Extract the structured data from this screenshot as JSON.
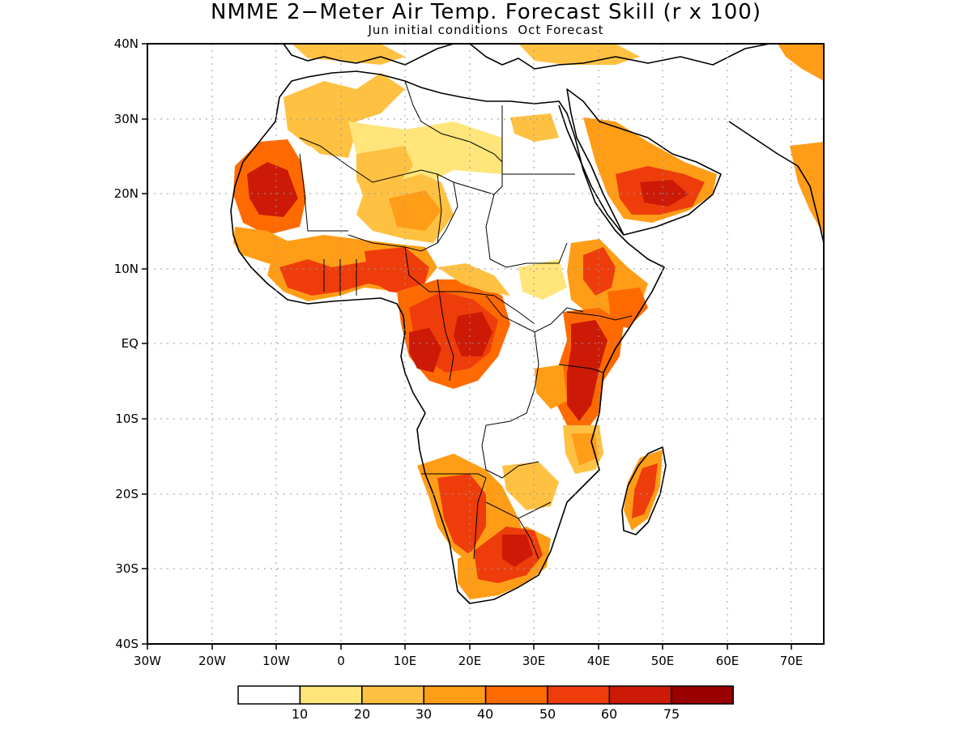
{
  "title": "NMME 2−Meter Air Temp. Forecast Skill (r x 100)",
  "subtitle": "Jun initial conditions  Oct Forecast",
  "map": {
    "lon_range": [
      -30,
      75
    ],
    "lat_range": [
      -40,
      40
    ],
    "grid": "dotted",
    "lon_ticks": [
      "30W",
      "20W",
      "10W",
      "0",
      "10E",
      "20E",
      "30E",
      "40E",
      "50E",
      "60E",
      "70E"
    ],
    "lat_ticks": [
      "40N",
      "30N",
      "20N",
      "10N",
      "EQ",
      "10S",
      "20S",
      "30S",
      "40S"
    ]
  },
  "colorbar": {
    "colors": [
      "#ffffff",
      "#ffe57a",
      "#ffc142",
      "#ff9d17",
      "#ff6a00",
      "#ee3d0b",
      "#cc1a06",
      "#990000"
    ],
    "labels": [
      "10",
      "20",
      "30",
      "40",
      "50",
      "60",
      "75"
    ]
  },
  "colors": {
    "c10": "#ffe57a",
    "c20": "#ffc142",
    "c30": "#ff9d17",
    "c40": "#ff6a00",
    "c50": "#ee3d0b",
    "c60": "#cc1a06",
    "c75": "#990000"
  }
}
